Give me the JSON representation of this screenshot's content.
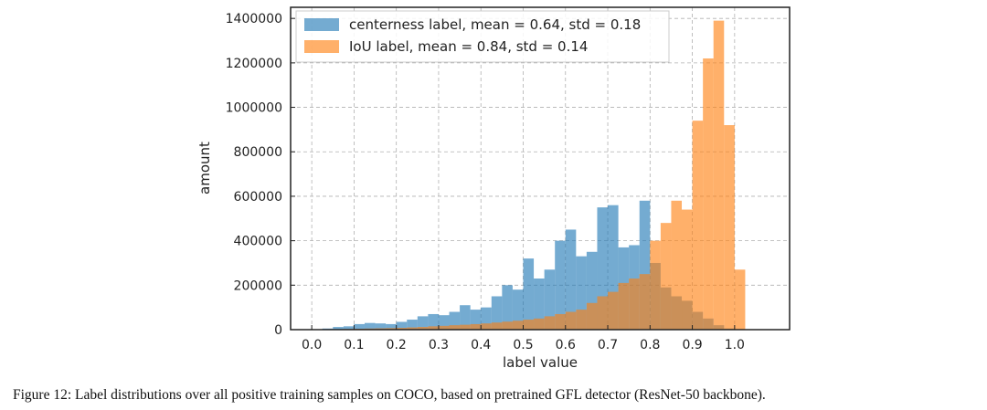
{
  "caption": "Figure 12: Label distributions over all positive training samples on COCO, based on pretrained GFL detector (ResNet-50 backbone).",
  "chart_data": {
    "type": "bar",
    "histogram": true,
    "xlabel": "label value",
    "ylabel": "amount",
    "xlim": [
      -0.05,
      1.13
    ],
    "ylim": [
      0,
      1450000
    ],
    "xticks": [
      0.0,
      0.1,
      0.2,
      0.3,
      0.4,
      0.5,
      0.6,
      0.7,
      0.8,
      0.9,
      1.0
    ],
    "xtick_labels": [
      "0.0",
      "0.1",
      "0.2",
      "0.3",
      "0.4",
      "0.5",
      "0.6",
      "0.7",
      "0.8",
      "0.9",
      "1.0"
    ],
    "yticks": [
      0,
      200000,
      400000,
      600000,
      800000,
      1000000,
      1200000,
      1400000
    ],
    "ytick_labels": [
      "0",
      "200000",
      "400000",
      "600000",
      "800000",
      "1000000",
      "1200000",
      "1400000"
    ],
    "grid": true,
    "legend_position": "top-left",
    "bin_width": 0.025,
    "series": [
      {
        "name": "centerness label, mean = 0.64, std = 0.18",
        "color": "#1f77b4",
        "bin_starts": [
          0.0,
          0.025,
          0.05,
          0.075,
          0.1,
          0.125,
          0.15,
          0.175,
          0.2,
          0.225,
          0.25,
          0.275,
          0.3,
          0.325,
          0.35,
          0.375,
          0.4,
          0.425,
          0.45,
          0.475,
          0.5,
          0.525,
          0.55,
          0.575,
          0.6,
          0.625,
          0.65,
          0.675,
          0.7,
          0.725,
          0.75,
          0.775,
          0.8,
          0.825,
          0.85,
          0.875,
          0.9,
          0.925,
          0.95,
          0.975
        ],
        "values": [
          2000,
          5000,
          12000,
          15000,
          25000,
          30000,
          28000,
          25000,
          35000,
          45000,
          60000,
          70000,
          65000,
          80000,
          110000,
          90000,
          100000,
          150000,
          200000,
          180000,
          320000,
          230000,
          270000,
          400000,
          450000,
          330000,
          350000,
          550000,
          560000,
          370000,
          380000,
          580000,
          300000,
          190000,
          150000,
          130000,
          80000,
          50000,
          20000,
          5000
        ]
      },
      {
        "name": "IoU label, mean = 0.84, std = 0.14",
        "color": "#ff7f0e",
        "bin_starts": [
          0.0,
          0.025,
          0.05,
          0.075,
          0.1,
          0.125,
          0.15,
          0.175,
          0.2,
          0.225,
          0.25,
          0.275,
          0.3,
          0.325,
          0.35,
          0.375,
          0.4,
          0.425,
          0.45,
          0.475,
          0.5,
          0.525,
          0.55,
          0.575,
          0.6,
          0.625,
          0.65,
          0.675,
          0.7,
          0.725,
          0.75,
          0.775,
          0.8,
          0.825,
          0.85,
          0.875,
          0.9,
          0.925,
          0.95,
          0.975
        ],
        "values": [
          0,
          1000,
          2000,
          3000,
          4000,
          5000,
          6000,
          7000,
          8000,
          10000,
          12000,
          15000,
          17000,
          20000,
          22000,
          25000,
          28000,
          32000,
          36000,
          40000,
          45000,
          50000,
          60000,
          70000,
          80000,
          90000,
          120000,
          150000,
          170000,
          210000,
          230000,
          250000,
          400000,
          480000,
          580000,
          540000,
          940000,
          1220000,
          1390000,
          920000
        ]
      }
    ],
    "overlay_series": {
      "name": "IoU label, mean = 0.84, std = 0.14",
      "bin_start": 1.0,
      "value": 270000
    }
  }
}
